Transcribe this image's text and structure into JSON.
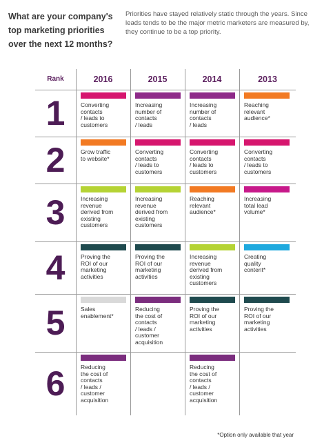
{
  "question": "What are your company's top marketing priorities over the next 12 months?",
  "note": "Priorities have stayed relatively static through the years. Since leads tends to be the major metric marketers are measured by, they continue to be a top priority.",
  "footnote": "*Option only available that year",
  "chart_data": {
    "type": "table",
    "row_header": "Rank",
    "columns": [
      "2016",
      "2015",
      "2014",
      "2013"
    ],
    "ranks": [
      "1",
      "2",
      "3",
      "4",
      "5",
      "6"
    ],
    "cells": [
      [
        {
          "text": "Converting contacts / leads to customers",
          "color": "#d6166e"
        },
        {
          "text": "Increasing number of contacts / leads",
          "color": "#8e2a89"
        },
        {
          "text": "Increasing number of contacts / leads",
          "color": "#8e2a89"
        },
        {
          "text": "Reaching relevant audience*",
          "color": "#f27a23"
        }
      ],
      [
        {
          "text": "Grow traffic to website*",
          "color": "#f27a23"
        },
        {
          "text": "Converting contacts / leads to customers",
          "color": "#d6166e"
        },
        {
          "text": "Converting contacts / leads to customers",
          "color": "#d6166e"
        },
        {
          "text": "Converting contacts / leads to customers",
          "color": "#d6166e"
        }
      ],
      [
        {
          "text": "Increasing revenue derived from existing customers",
          "color": "#b5d334"
        },
        {
          "text": "Increasing revenue derived from existing customers",
          "color": "#b5d334"
        },
        {
          "text": "Reaching relevant audience*",
          "color": "#f27a23"
        },
        {
          "text": "Increasing total lead volume*",
          "color": "#c7198a"
        }
      ],
      [
        {
          "text": "Proving the ROI of our marketing activities",
          "color": "#1f4a4e"
        },
        {
          "text": "Proving the ROI of our marketing activities",
          "color": "#1f4a4e"
        },
        {
          "text": "Increasing revenue derived from existing customers",
          "color": "#b5d334"
        },
        {
          "text": "Creating quality content*",
          "color": "#1fa9de"
        }
      ],
      [
        {
          "text": "Sales enablement*",
          "color": "#d9d9d9"
        },
        {
          "text": "Reducing the cost of contacts / leads / customer acquisition",
          "color": "#7b2d7e"
        },
        {
          "text": "Proving the ROI of our marketing activities",
          "color": "#1f4a4e"
        },
        {
          "text": "Proving the ROI of our marketing activities",
          "color": "#1f4a4e"
        }
      ],
      [
        {
          "text": "Reducing the cost of contacts / leads / customer acquisition",
          "color": "#7b2d7e"
        },
        null,
        {
          "text": "Reducing the cost of contacts / leads / customer acquisition",
          "color": "#7b2d7e"
        },
        null
      ]
    ],
    "cell_lines": {
      "Converting contacts / leads to customers": [
        "Converting",
        "contacts",
        "/ leads to",
        "customers"
      ],
      "Increasing number of contacts / leads": [
        "Increasing",
        "number of",
        "contacts",
        " / leads"
      ],
      "Reaching relevant audience*": [
        "Reaching",
        "relevant",
        "audience*"
      ],
      "Grow traffic to website*": [
        "Grow traffic",
        "to website*"
      ],
      "Increasing revenue derived from existing customers": [
        "Increasing",
        "revenue",
        "derived from",
        "existing",
        "customers"
      ],
      "Increasing total lead volume*": [
        "Increasing",
        "total lead",
        "volume*"
      ],
      "Proving the ROI of our marketing activities": [
        "Proving the",
        "ROI of our",
        "marketing",
        "activities"
      ],
      "Creating quality content*": [
        "Creating",
        "quality",
        "content*"
      ],
      "Sales enablement*": [
        "Sales",
        "enablement*"
      ],
      "Reducing the cost of contacts / leads / customer acquisition": [
        "Reducing",
        "the cost of",
        "contacts",
        "/ leads /",
        "customer",
        "acquisition"
      ]
    }
  }
}
